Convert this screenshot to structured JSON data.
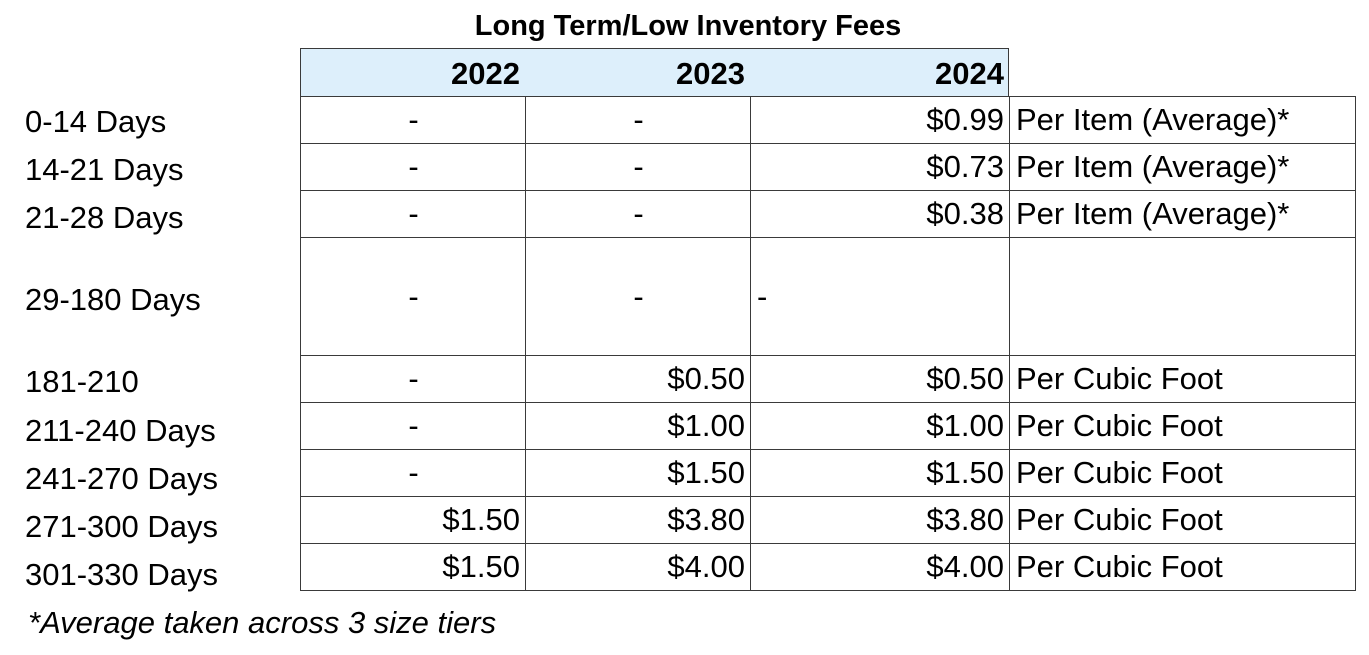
{
  "title": "Long Term/Low Inventory Fees",
  "years": [
    "2022",
    "2023",
    "2024"
  ],
  "rows": [
    {
      "label": "0-14 Days",
      "v2022": "-",
      "v2023": "-",
      "v2024": "$0.99",
      "unit": "Per Item (Average)*"
    },
    {
      "label": "14-21 Days",
      "v2022": "-",
      "v2023": "-",
      "v2024": "$0.73",
      "unit": "Per Item (Average)*"
    },
    {
      "label": "21-28 Days",
      "v2022": "-",
      "v2023": "-",
      "v2024": "$0.38",
      "unit": "Per Item (Average)*"
    },
    {
      "label": "29-180 Days",
      "v2022": "-",
      "v2023": "-",
      "v2024": "-",
      "unit": ""
    },
    {
      "label": "181-210",
      "v2022": "-",
      "v2023": "$0.50",
      "v2024": "$0.50",
      "unit": "Per Cubic Foot"
    },
    {
      "label": "211-240 Days",
      "v2022": "-",
      "v2023": "$1.00",
      "v2024": "$1.00",
      "unit": "Per Cubic Foot"
    },
    {
      "label": "241-270 Days",
      "v2022": "-",
      "v2023": "$1.50",
      "v2024": "$1.50",
      "unit": "Per Cubic Foot"
    },
    {
      "label": "271-300 Days",
      "v2022": "$1.50",
      "v2023": "$3.80",
      "v2024": "$3.80",
      "unit": "Per Cubic Foot"
    },
    {
      "label": "301-330 Days",
      "v2022": "$1.50",
      "v2023": "$4.00",
      "v2024": "$4.00",
      "unit": "Per Cubic Foot"
    }
  ],
  "footnote": "*Average taken across 3 size tiers"
}
